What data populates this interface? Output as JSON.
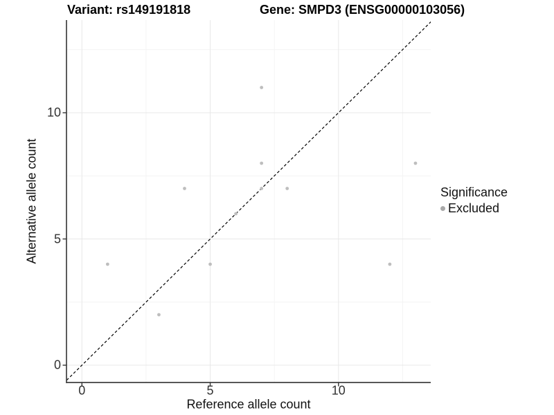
{
  "figure": {
    "title_left": "Variant: rs149191818",
    "title_right": "Gene: SMPD3 (ENSG00000103056)"
  },
  "chart_data": {
    "type": "scatter",
    "title": "Variant: rs149191818 — Gene: SMPD3 (ENSG00000103056)",
    "xlabel": "Reference allele count",
    "ylabel": "Alternative allele count",
    "xlim": [
      -0.68,
      13.68
    ],
    "ylim": [
      -0.68,
      13.68
    ],
    "x_ticks": {
      "values": [
        0,
        5,
        10
      ],
      "labels": [
        "0",
        "5",
        "10"
      ]
    },
    "y_ticks": {
      "values": [
        0,
        5,
        10
      ],
      "labels": [
        "0",
        "5",
        "10"
      ]
    },
    "x_minor_gridlines": [
      2.5,
      7.5,
      12.5
    ],
    "y_minor_gridlines": [
      2.5,
      7.5,
      12.5
    ],
    "grid": true,
    "series": [
      {
        "name": "Excluded",
        "color": "#bebebe",
        "points": [
          [
            1,
            4
          ],
          [
            3,
            2
          ],
          [
            4,
            7
          ],
          [
            5,
            4
          ],
          [
            6,
            6
          ],
          [
            7,
            7
          ],
          [
            7,
            8
          ],
          [
            7,
            11
          ],
          [
            8,
            7
          ],
          [
            12,
            4
          ],
          [
            13,
            8
          ]
        ]
      }
    ],
    "reference_line": {
      "type": "identity",
      "equation": "y = x",
      "style": "dashed",
      "color": "#000000"
    },
    "legend": {
      "title": "Significance",
      "position": "right",
      "entries": [
        {
          "label": "Excluded",
          "color": "#a9a9a9"
        }
      ]
    },
    "colors": {
      "background": "#ffffff",
      "grid_major": "#e8e8e8",
      "grid_minor": "#f4f4f4",
      "axis_line": "#3f3f3f",
      "tick_mark": "#333333",
      "point": "#bebebe",
      "reference_line": "#000000"
    }
  }
}
